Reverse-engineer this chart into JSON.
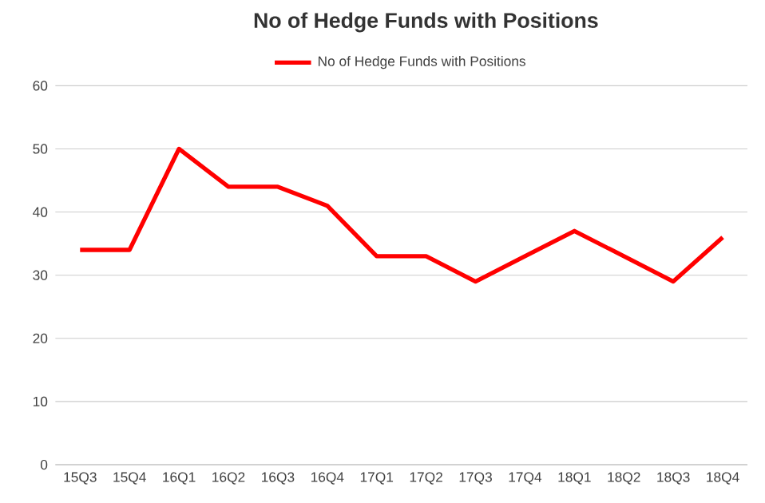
{
  "chart_data": {
    "type": "line",
    "title": "No of Hedge Funds with Positions",
    "categories": [
      "15Q3",
      "15Q4",
      "16Q1",
      "16Q2",
      "16Q3",
      "16Q4",
      "17Q1",
      "17Q2",
      "17Q3",
      "17Q4",
      "18Q1",
      "18Q2",
      "18Q3",
      "18Q4"
    ],
    "series": [
      {
        "name": "No of Hedge Funds with Positions",
        "color": "#ff0000",
        "values": [
          34,
          34,
          50,
          44,
          44,
          41,
          33,
          33,
          29,
          33,
          37,
          33,
          29,
          36
        ]
      }
    ],
    "ylim": [
      0,
      60
    ],
    "yticks": [
      0,
      10,
      20,
      30,
      40,
      50,
      60
    ],
    "grid": "y",
    "legend": "top",
    "marker": "none",
    "line_style": "solid"
  }
}
